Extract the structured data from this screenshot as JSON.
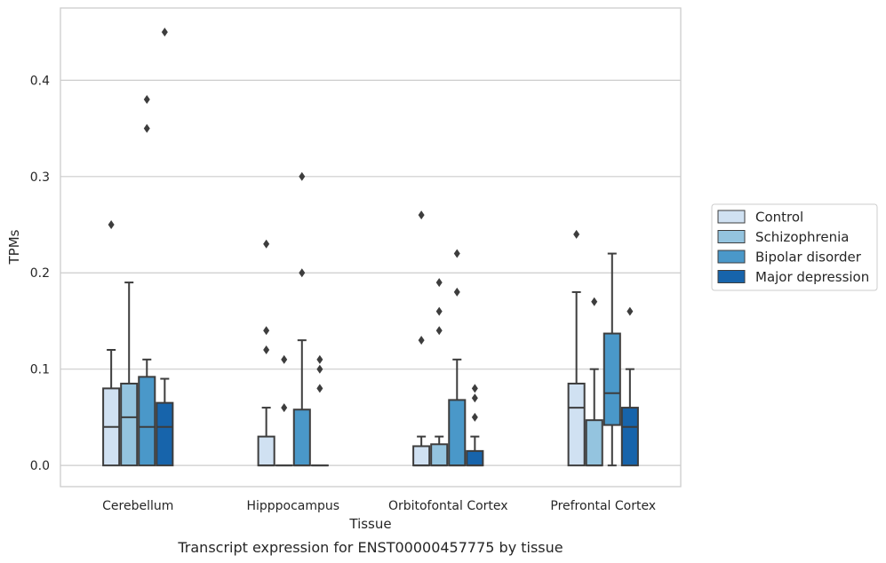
{
  "caption": "Transcript expression for ENST00000457775 by tissue",
  "chart_data": {
    "type": "boxplot",
    "xlabel": "Tissue",
    "ylabel": "TPMs",
    "ylim": [
      -0.022,
      0.475
    ],
    "yticks": [
      0.0,
      0.1,
      0.2,
      0.3,
      0.4
    ],
    "ytick_labels": [
      "0.0",
      "0.1",
      "0.2",
      "0.3",
      "0.4"
    ],
    "grid": "horizontal",
    "legend_position": "right",
    "categories": [
      "Cerebellum",
      "Hipppocampus",
      "Orbitofontal Cortex",
      "Prefrontal Cortex"
    ],
    "series": [
      {
        "name": "Control",
        "color": "#d0e1f2",
        "boxes": [
          {
            "whislo": 0.0,
            "q1": 0.0,
            "med": 0.04,
            "q3": 0.08,
            "whishi": 0.12,
            "fliers": [
              0.25
            ]
          },
          {
            "whislo": 0.0,
            "q1": 0.0,
            "med": 0.0,
            "q3": 0.03,
            "whishi": 0.06,
            "fliers": [
              0.23,
              0.14,
              0.12
            ]
          },
          {
            "whislo": 0.0,
            "q1": 0.0,
            "med": 0.0,
            "q3": 0.02,
            "whishi": 0.03,
            "fliers": [
              0.26,
              0.13
            ]
          },
          {
            "whislo": 0.0,
            "q1": 0.0,
            "med": 0.06,
            "q3": 0.085,
            "whishi": 0.18,
            "fliers": [
              0.24
            ]
          }
        ]
      },
      {
        "name": "Schizophrenia",
        "color": "#94c4df",
        "boxes": [
          {
            "whislo": 0.0,
            "q1": 0.0,
            "med": 0.05,
            "q3": 0.085,
            "whishi": 0.19,
            "fliers": []
          },
          {
            "whislo": 0.0,
            "q1": 0.0,
            "med": 0.0,
            "q3": 0.0,
            "whishi": 0.0,
            "fliers": [
              0.11,
              0.06
            ]
          },
          {
            "whislo": 0.0,
            "q1": 0.0,
            "med": 0.0,
            "q3": 0.022,
            "whishi": 0.03,
            "fliers": [
              0.19,
              0.16,
              0.14
            ]
          },
          {
            "whislo": 0.0,
            "q1": 0.0,
            "med": 0.0,
            "q3": 0.047,
            "whishi": 0.1,
            "fliers": [
              0.17
            ]
          }
        ]
      },
      {
        "name": "Bipolar disorder",
        "color": "#4a98c9",
        "boxes": [
          {
            "whislo": 0.0,
            "q1": 0.0,
            "med": 0.04,
            "q3": 0.092,
            "whishi": 0.11,
            "fliers": [
              0.38,
              0.35
            ]
          },
          {
            "whislo": 0.0,
            "q1": 0.0,
            "med": 0.0,
            "q3": 0.058,
            "whishi": 0.13,
            "fliers": [
              0.3,
              0.2
            ]
          },
          {
            "whislo": 0.0,
            "q1": 0.0,
            "med": 0.0,
            "q3": 0.068,
            "whishi": 0.11,
            "fliers": [
              0.22,
              0.18
            ]
          },
          {
            "whislo": 0.0,
            "q1": 0.042,
            "med": 0.075,
            "q3": 0.137,
            "whishi": 0.22,
            "fliers": []
          }
        ]
      },
      {
        "name": "Major depression",
        "color": "#1764ab",
        "boxes": [
          {
            "whislo": 0.0,
            "q1": 0.0,
            "med": 0.04,
            "q3": 0.065,
            "whishi": 0.09,
            "fliers": [
              0.45
            ]
          },
          {
            "whislo": 0.0,
            "q1": 0.0,
            "med": 0.0,
            "q3": 0.0,
            "whishi": 0.0,
            "fliers": [
              0.11,
              0.1,
              0.08
            ]
          },
          {
            "whislo": 0.0,
            "q1": 0.0,
            "med": 0.0,
            "q3": 0.015,
            "whishi": 0.03,
            "fliers": [
              0.08,
              0.07,
              0.05
            ]
          },
          {
            "whislo": 0.0,
            "q1": 0.0,
            "med": 0.04,
            "q3": 0.06,
            "whishi": 0.1,
            "fliers": [
              0.16
            ]
          }
        ]
      }
    ]
  }
}
